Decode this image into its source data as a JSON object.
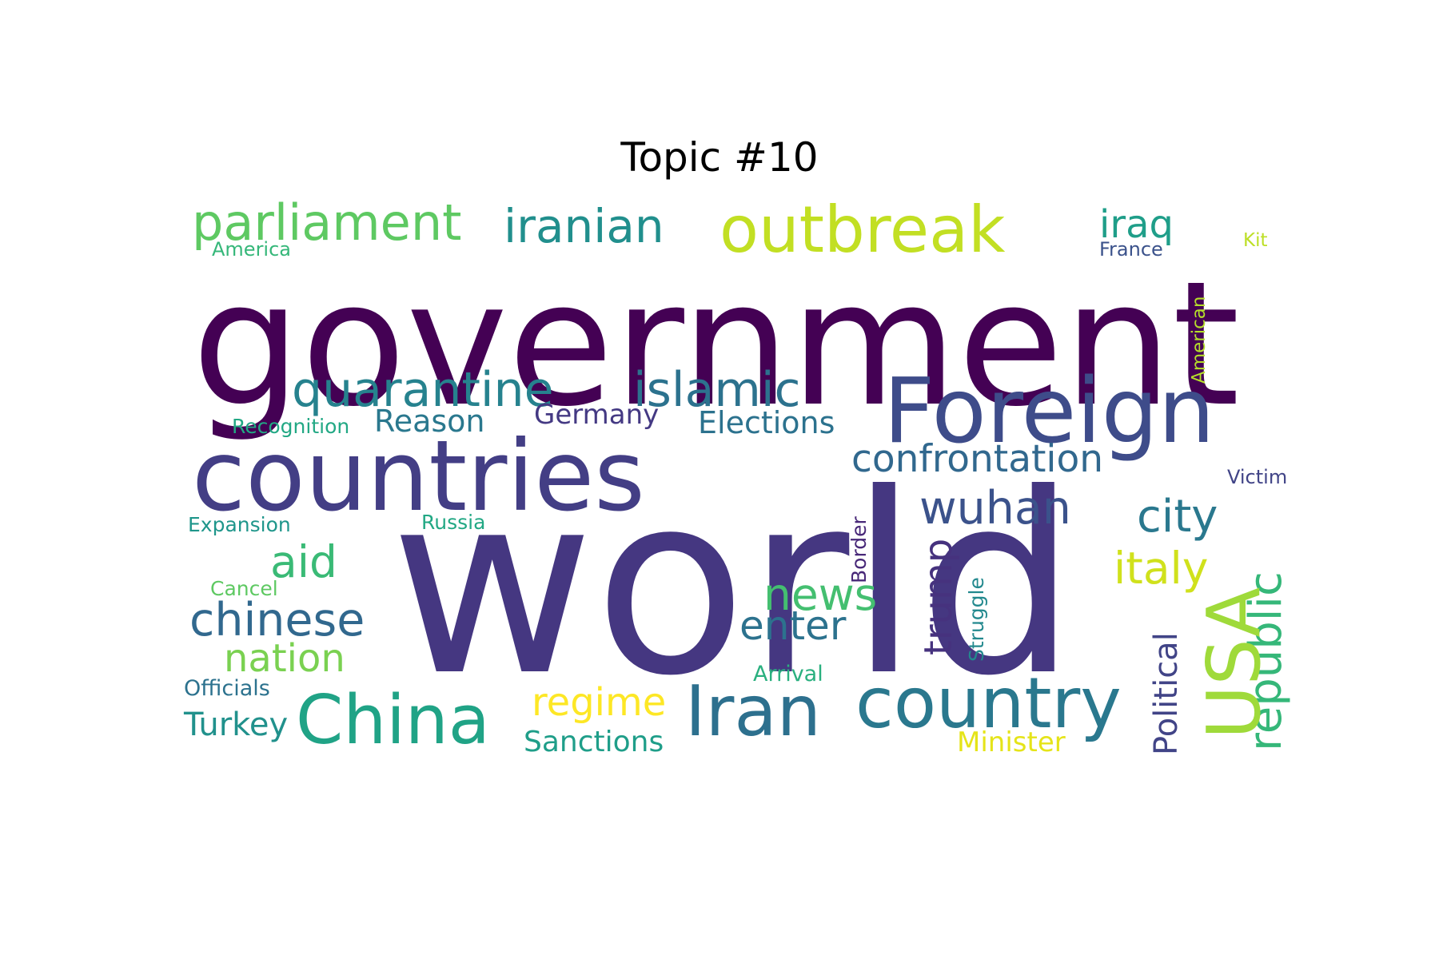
{
  "title": "Topic #10",
  "words": [
    {
      "text": "government",
      "color": "#440154"
    },
    {
      "text": "world",
      "color": "#453781"
    },
    {
      "text": "countries",
      "color": "#433e85"
    },
    {
      "text": "Foreign",
      "color": "#3e4c8a"
    },
    {
      "text": "outbreak",
      "color": "#c2df23"
    },
    {
      "text": "parliament",
      "color": "#5ec962"
    },
    {
      "text": "iranian",
      "color": "#218f8d"
    },
    {
      "text": "iraq",
      "color": "#1f9e89"
    },
    {
      "text": "America",
      "color": "#35b779"
    },
    {
      "text": "France",
      "color": "#3b528b"
    },
    {
      "text": "Kit",
      "color": "#bddf26"
    },
    {
      "text": "American",
      "color": "#b5de2b"
    },
    {
      "text": "quarantine",
      "color": "#26828e"
    },
    {
      "text": "islamic",
      "color": "#2c728e"
    },
    {
      "text": "Reason",
      "color": "#2a788e"
    },
    {
      "text": "Germany",
      "color": "#443983"
    },
    {
      "text": "Elections",
      "color": "#2c728e"
    },
    {
      "text": "Recognition",
      "color": "#22a884"
    },
    {
      "text": "confrontation",
      "color": "#31688e"
    },
    {
      "text": "Victim",
      "color": "#414487"
    },
    {
      "text": "Expansion",
      "color": "#1f968b"
    },
    {
      "text": "Russia",
      "color": "#22a884"
    },
    {
      "text": "wuhan",
      "color": "#3b528b"
    },
    {
      "text": "city",
      "color": "#2a788e"
    },
    {
      "text": "republic",
      "color": "#35b779"
    },
    {
      "text": "aid",
      "color": "#3aba76"
    },
    {
      "text": "Border",
      "color": "#482878"
    },
    {
      "text": "italy",
      "color": "#d0e11c"
    },
    {
      "text": "Cancel",
      "color": "#5ec962"
    },
    {
      "text": "news",
      "color": "#44bf70"
    },
    {
      "text": "chinese",
      "color": "#31688e"
    },
    {
      "text": "trump",
      "color": "#46327e"
    },
    {
      "text": "Struggle",
      "color": "#23898e"
    },
    {
      "text": "enter",
      "color": "#2c728e"
    },
    {
      "text": "USA",
      "color": "#9fda3a"
    },
    {
      "text": "Political",
      "color": "#414487"
    },
    {
      "text": "nation",
      "color": "#7ad151"
    },
    {
      "text": "Arrival",
      "color": "#2ab07f"
    },
    {
      "text": "Officials",
      "color": "#2c728e"
    },
    {
      "text": "China",
      "color": "#20a386"
    },
    {
      "text": "Iran",
      "color": "#2d708e"
    },
    {
      "text": "country",
      "color": "#2a788e"
    },
    {
      "text": "regime",
      "color": "#fde725"
    },
    {
      "text": "Turkey",
      "color": "#21918c"
    },
    {
      "text": "Sanctions",
      "color": "#1f9e89"
    },
    {
      "text": "Minister",
      "color": "#e5e419"
    }
  ]
}
